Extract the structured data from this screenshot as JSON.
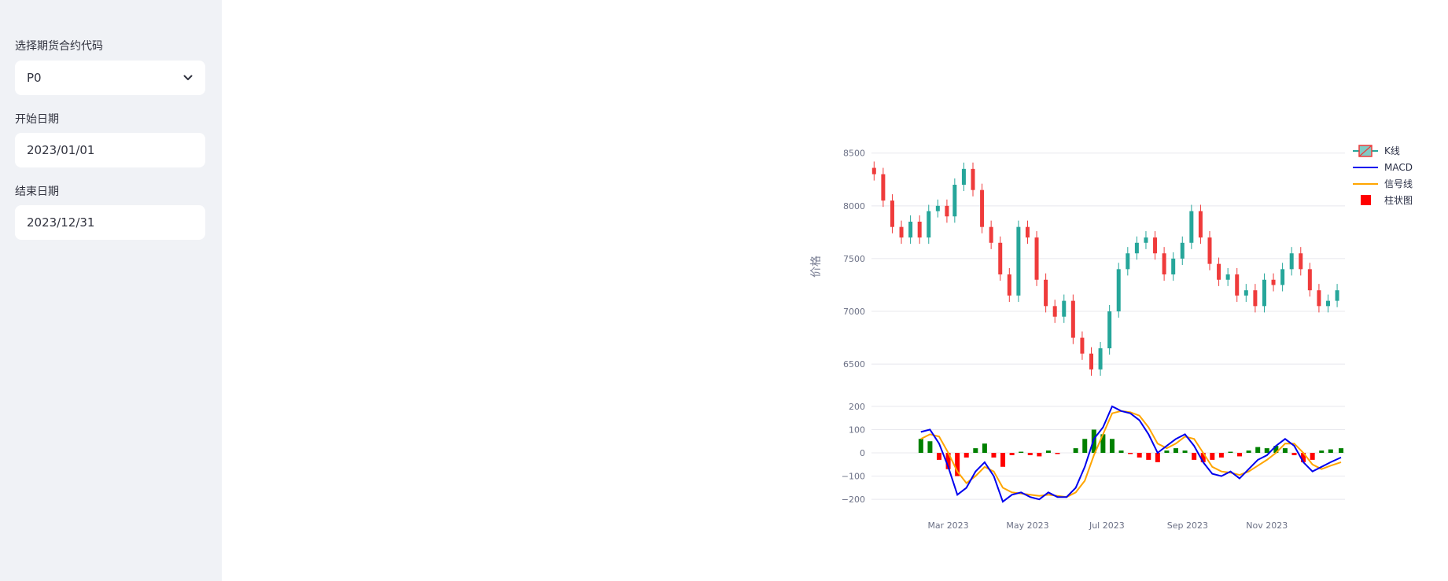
{
  "sidebar": {
    "contract_label": "选择期货合约代码",
    "contract_value": "P0",
    "start_label": "开始日期",
    "start_value": "2023/01/01",
    "end_label": "结束日期",
    "end_value": "2023/12/31"
  },
  "colors": {
    "sidebar_bg": "#f0f2f6",
    "increasing": "#26a69a",
    "decreasing": "#ef3b3b",
    "macd": "#0000ee",
    "signal": "#ffa500",
    "hist_pos": "#008000",
    "hist_neg": "#ff0000"
  },
  "chart_data": {
    "type": "candlestick+macd",
    "price_panel": {
      "ylabel": "价格",
      "ylim": [
        6300,
        8550
      ],
      "yticks": [
        6500,
        7000,
        7500,
        8000,
        8500
      ],
      "close_series": [
        [
          "2023-01-03",
          8300
        ],
        [
          "2023-01-10",
          8050
        ],
        [
          "2023-01-17",
          7800
        ],
        [
          "2023-01-24",
          7700
        ],
        [
          "2023-01-31",
          7850
        ],
        [
          "2023-02-07",
          7700
        ],
        [
          "2023-02-14",
          7950
        ],
        [
          "2023-02-21",
          8000
        ],
        [
          "2023-02-28",
          7900
        ],
        [
          "2023-03-06",
          8200
        ],
        [
          "2023-03-13",
          8350
        ],
        [
          "2023-03-20",
          8150
        ],
        [
          "2023-03-27",
          7800
        ],
        [
          "2023-04-03",
          7650
        ],
        [
          "2023-04-10",
          7350
        ],
        [
          "2023-04-17",
          7150
        ],
        [
          "2023-04-24",
          7800
        ],
        [
          "2023-05-01",
          7700
        ],
        [
          "2023-05-08",
          7300
        ],
        [
          "2023-05-15",
          7050
        ],
        [
          "2023-05-22",
          6950
        ],
        [
          "2023-05-29",
          7100
        ],
        [
          "2023-06-05",
          6750
        ],
        [
          "2023-06-12",
          6600
        ],
        [
          "2023-06-19",
          6450
        ],
        [
          "2023-06-26",
          6650
        ],
        [
          "2023-07-03",
          7000
        ],
        [
          "2023-07-10",
          7400
        ],
        [
          "2023-07-17",
          7550
        ],
        [
          "2023-07-24",
          7650
        ],
        [
          "2023-07-31",
          7700
        ],
        [
          "2023-08-07",
          7550
        ],
        [
          "2023-08-14",
          7350
        ],
        [
          "2023-08-21",
          7500
        ],
        [
          "2023-08-28",
          7650
        ],
        [
          "2023-09-04",
          7950
        ],
        [
          "2023-09-11",
          7700
        ],
        [
          "2023-09-18",
          7450
        ],
        [
          "2023-09-25",
          7300
        ],
        [
          "2023-10-02",
          7350
        ],
        [
          "2023-10-09",
          7150
        ],
        [
          "2023-10-16",
          7200
        ],
        [
          "2023-10-23",
          7050
        ],
        [
          "2023-10-30",
          7300
        ],
        [
          "2023-11-06",
          7250
        ],
        [
          "2023-11-13",
          7400
        ],
        [
          "2023-11-20",
          7550
        ],
        [
          "2023-11-27",
          7400
        ],
        [
          "2023-12-04",
          7200
        ],
        [
          "2023-12-11",
          7050
        ],
        [
          "2023-12-18",
          7100
        ],
        [
          "2023-12-25",
          7200
        ]
      ]
    },
    "macd_panel": {
      "ylim": [
        -240,
        230
      ],
      "yticks": [
        -200,
        -100,
        0,
        100,
        200
      ],
      "macd": [
        [
          "2023-02-08",
          90
        ],
        [
          "2023-02-15",
          100
        ],
        [
          "2023-02-22",
          40
        ],
        [
          "2023-03-01",
          -60
        ],
        [
          "2023-03-08",
          -180
        ],
        [
          "2023-03-15",
          -150
        ],
        [
          "2023-03-22",
          -80
        ],
        [
          "2023-03-29",
          -40
        ],
        [
          "2023-04-05",
          -100
        ],
        [
          "2023-04-12",
          -210
        ],
        [
          "2023-04-19",
          -180
        ],
        [
          "2023-04-26",
          -170
        ],
        [
          "2023-05-03",
          -190
        ],
        [
          "2023-05-10",
          -200
        ],
        [
          "2023-05-17",
          -170
        ],
        [
          "2023-05-24",
          -190
        ],
        [
          "2023-05-31",
          -190
        ],
        [
          "2023-06-07",
          -150
        ],
        [
          "2023-06-14",
          -60
        ],
        [
          "2023-06-21",
          60
        ],
        [
          "2023-06-28",
          110
        ],
        [
          "2023-07-05",
          200
        ],
        [
          "2023-07-12",
          180
        ],
        [
          "2023-07-19",
          170
        ],
        [
          "2023-07-26",
          140
        ],
        [
          "2023-08-02",
          80
        ],
        [
          "2023-08-09",
          0
        ],
        [
          "2023-08-16",
          30
        ],
        [
          "2023-08-23",
          60
        ],
        [
          "2023-08-30",
          80
        ],
        [
          "2023-09-06",
          30
        ],
        [
          "2023-09-13",
          -40
        ],
        [
          "2023-09-20",
          -90
        ],
        [
          "2023-09-27",
          -100
        ],
        [
          "2023-10-04",
          -80
        ],
        [
          "2023-10-11",
          -110
        ],
        [
          "2023-10-18",
          -70
        ],
        [
          "2023-10-25",
          -30
        ],
        [
          "2023-11-01",
          -10
        ],
        [
          "2023-11-08",
          30
        ],
        [
          "2023-11-15",
          60
        ],
        [
          "2023-11-22",
          30
        ],
        [
          "2023-11-29",
          -40
        ],
        [
          "2023-12-06",
          -80
        ],
        [
          "2023-12-13",
          -60
        ],
        [
          "2023-12-20",
          -40
        ],
        [
          "2023-12-28",
          -20
        ]
      ],
      "signal": [
        [
          "2023-02-08",
          60
        ],
        [
          "2023-02-15",
          80
        ],
        [
          "2023-02-22",
          70
        ],
        [
          "2023-03-01",
          0
        ],
        [
          "2023-03-08",
          -80
        ],
        [
          "2023-03-15",
          -130
        ],
        [
          "2023-03-22",
          -100
        ],
        [
          "2023-03-29",
          -60
        ],
        [
          "2023-04-05",
          -80
        ],
        [
          "2023-04-12",
          -150
        ],
        [
          "2023-04-19",
          -170
        ],
        [
          "2023-04-26",
          -175
        ],
        [
          "2023-05-03",
          -180
        ],
        [
          "2023-05-10",
          -185
        ],
        [
          "2023-05-17",
          -180
        ],
        [
          "2023-05-24",
          -185
        ],
        [
          "2023-05-31",
          -190
        ],
        [
          "2023-06-07",
          -170
        ],
        [
          "2023-06-14",
          -120
        ],
        [
          "2023-06-21",
          -10
        ],
        [
          "2023-06-28",
          80
        ],
        [
          "2023-07-05",
          170
        ],
        [
          "2023-07-12",
          180
        ],
        [
          "2023-07-19",
          175
        ],
        [
          "2023-07-26",
          160
        ],
        [
          "2023-08-02",
          110
        ],
        [
          "2023-08-09",
          40
        ],
        [
          "2023-08-16",
          20
        ],
        [
          "2023-08-23",
          40
        ],
        [
          "2023-08-30",
          70
        ],
        [
          "2023-09-06",
          60
        ],
        [
          "2023-09-13",
          0
        ],
        [
          "2023-09-20",
          -60
        ],
        [
          "2023-09-27",
          -80
        ],
        [
          "2023-10-04",
          -85
        ],
        [
          "2023-10-11",
          -95
        ],
        [
          "2023-10-18",
          -80
        ],
        [
          "2023-10-25",
          -55
        ],
        [
          "2023-11-01",
          -30
        ],
        [
          "2023-11-08",
          0
        ],
        [
          "2023-11-15",
          40
        ],
        [
          "2023-11-22",
          40
        ],
        [
          "2023-11-29",
          0
        ],
        [
          "2023-12-06",
          -50
        ],
        [
          "2023-12-13",
          -70
        ],
        [
          "2023-12-20",
          -55
        ],
        [
          "2023-12-28",
          -40
        ]
      ],
      "histogram": [
        [
          "2023-02-08",
          60
        ],
        [
          "2023-02-15",
          50
        ],
        [
          "2023-02-22",
          -30
        ],
        [
          "2023-03-01",
          -70
        ],
        [
          "2023-03-08",
          -100
        ],
        [
          "2023-03-15",
          -20
        ],
        [
          "2023-03-22",
          20
        ],
        [
          "2023-03-29",
          40
        ],
        [
          "2023-04-05",
          -20
        ],
        [
          "2023-04-12",
          -60
        ],
        [
          "2023-04-19",
          -10
        ],
        [
          "2023-04-26",
          5
        ],
        [
          "2023-05-03",
          -10
        ],
        [
          "2023-05-10",
          -15
        ],
        [
          "2023-05-17",
          10
        ],
        [
          "2023-05-24",
          -5
        ],
        [
          "2023-05-31",
          0
        ],
        [
          "2023-06-07",
          20
        ],
        [
          "2023-06-14",
          60
        ],
        [
          "2023-06-21",
          100
        ],
        [
          "2023-06-28",
          80
        ],
        [
          "2023-07-05",
          60
        ],
        [
          "2023-07-12",
          10
        ],
        [
          "2023-07-19",
          -5
        ],
        [
          "2023-07-26",
          -20
        ],
        [
          "2023-08-02",
          -30
        ],
        [
          "2023-08-09",
          -40
        ],
        [
          "2023-08-16",
          10
        ],
        [
          "2023-08-23",
          20
        ],
        [
          "2023-08-30",
          10
        ],
        [
          "2023-09-06",
          -30
        ],
        [
          "2023-09-13",
          -40
        ],
        [
          "2023-09-20",
          -30
        ],
        [
          "2023-09-27",
          -20
        ],
        [
          "2023-10-04",
          5
        ],
        [
          "2023-10-11",
          -15
        ],
        [
          "2023-10-18",
          10
        ],
        [
          "2023-10-25",
          25
        ],
        [
          "2023-11-01",
          20
        ],
        [
          "2023-11-08",
          30
        ],
        [
          "2023-11-15",
          20
        ],
        [
          "2023-11-22",
          -10
        ],
        [
          "2023-11-29",
          -40
        ],
        [
          "2023-12-06",
          -30
        ],
        [
          "2023-12-13",
          10
        ],
        [
          "2023-12-20",
          15
        ],
        [
          "2023-12-28",
          20
        ]
      ]
    },
    "x_ticks": [
      {
        "date": "2023-03-01",
        "label": "Mar 2023"
      },
      {
        "date": "2023-05-01",
        "label": "May 2023"
      },
      {
        "date": "2023-07-01",
        "label": "Jul 2023"
      },
      {
        "date": "2023-09-01",
        "label": "Sep 2023"
      },
      {
        "date": "2023-11-01",
        "label": "Nov 2023"
      }
    ],
    "x_range": [
      "2023-01-01",
      "2023-12-31"
    ],
    "legend": {
      "placement": "top-right",
      "entries": [
        {
          "name": "K线",
          "kind": "candle"
        },
        {
          "name": "MACD",
          "kind": "line",
          "color": "#0000ee"
        },
        {
          "name": "信号线",
          "kind": "line",
          "color": "#ffa500"
        },
        {
          "name": "柱状图",
          "kind": "square",
          "color": "#ff0000"
        }
      ]
    },
    "grid": true
  }
}
